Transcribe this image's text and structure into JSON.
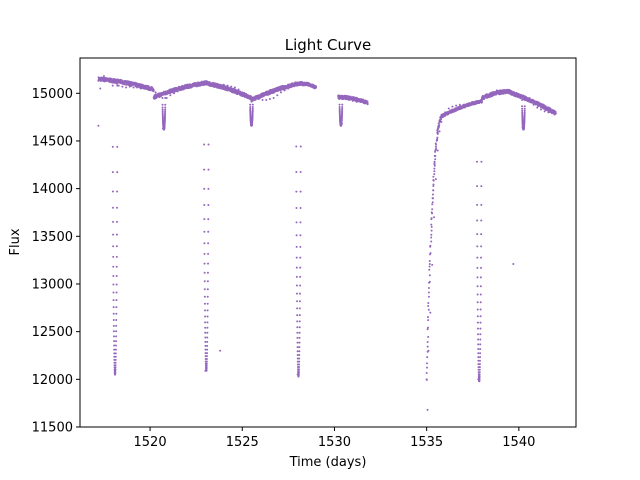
{
  "chart_data": {
    "type": "scatter",
    "title": "Light Curve",
    "xlabel": "Time (days)",
    "ylabel": "Flux",
    "xlim": [
      1516.2,
      1543.1
    ],
    "ylim": [
      11500,
      15370
    ],
    "xticks": [
      1520,
      1525,
      1530,
      1535,
      1540
    ],
    "yticks": [
      11500,
      12000,
      12500,
      13000,
      13500,
      14000,
      14500,
      15000
    ],
    "grid": false,
    "legend": "none",
    "marker_color": "#9467bd",
    "series": [
      {
        "points": [
          [
            1517.2,
            14660
          ],
          [
            1517.3,
            15050
          ],
          [
            1517.4,
            15140
          ],
          [
            1517.5,
            15180
          ],
          [
            1517.6,
            15160
          ],
          [
            1517.7,
            15140
          ],
          [
            1517.8,
            15150
          ],
          [
            1517.9,
            15130
          ],
          [
            1518.0,
            15120
          ],
          [
            1518.1,
            12050
          ],
          [
            1518.2,
            15100
          ],
          [
            1518.3,
            15080
          ],
          [
            1518.5,
            15070
          ],
          [
            1518.7,
            15060
          ],
          [
            1518.9,
            15070
          ],
          [
            1519.1,
            15060
          ],
          [
            1519.3,
            15060
          ],
          [
            1519.5,
            15050
          ],
          [
            1519.7,
            15060
          ],
          [
            1519.9,
            15050
          ],
          [
            1520.1,
            15040
          ],
          [
            1520.3,
            15010
          ],
          [
            1520.5,
            14960
          ],
          [
            1520.7,
            14630
          ],
          [
            1520.9,
            14950
          ],
          [
            1521.1,
            14980
          ],
          [
            1521.3,
            15000
          ],
          [
            1521.5,
            15020
          ],
          [
            1521.7,
            15040
          ],
          [
            1521.9,
            15060
          ],
          [
            1522.1,
            15080
          ],
          [
            1522.3,
            15090
          ],
          [
            1522.5,
            15100
          ],
          [
            1522.7,
            15110
          ],
          [
            1522.9,
            15110
          ],
          [
            1523.0,
            12090
          ],
          [
            1523.2,
            15110
          ],
          [
            1523.4,
            15110
          ],
          [
            1523.6,
            15100
          ],
          [
            1523.8,
            15090
          ],
          [
            1524.0,
            15090
          ],
          [
            1524.2,
            15080
          ],
          [
            1524.4,
            15070
          ],
          [
            1524.6,
            15060
          ],
          [
            1524.8,
            15040
          ],
          [
            1525.0,
            15010
          ],
          [
            1525.2,
            14990
          ],
          [
            1525.4,
            14960
          ],
          [
            1525.5,
            14680
          ],
          [
            1525.7,
            14950
          ],
          [
            1525.9,
            14940
          ],
          [
            1526.1,
            14930
          ],
          [
            1526.3,
            14930
          ],
          [
            1526.5,
            14940
          ],
          [
            1526.7,
            14950
          ],
          [
            1526.9,
            14980
          ],
          [
            1527.1,
            15010
          ],
          [
            1527.3,
            15030
          ],
          [
            1527.5,
            15050
          ],
          [
            1527.7,
            15080
          ],
          [
            1527.9,
            15100
          ],
          [
            1528.0,
            12050
          ],
          [
            1528.2,
            15100
          ],
          [
            1528.4,
            15090
          ],
          [
            1528.6,
            15080
          ],
          [
            1528.8,
            15070
          ],
          [
            1529.0,
            15060
          ],
          [
            1530.3,
            14950
          ],
          [
            1530.4,
            14680
          ],
          [
            1530.6,
            14940
          ],
          [
            1530.8,
            14930
          ],
          [
            1531.0,
            14920
          ],
          [
            1531.2,
            14910
          ],
          [
            1531.4,
            14910
          ],
          [
            1531.6,
            14900
          ],
          [
            1531.8,
            14890
          ],
          [
            1535.0,
            12000
          ],
          [
            1535.05,
            11680
          ],
          [
            1535.1,
            12300
          ],
          [
            1535.2,
            12700
          ],
          [
            1535.3,
            13200
          ],
          [
            1535.4,
            13700
          ],
          [
            1535.5,
            14100
          ],
          [
            1535.6,
            14400
          ],
          [
            1535.7,
            14600
          ],
          [
            1535.8,
            14700
          ],
          [
            1535.9,
            14760
          ],
          [
            1536.0,
            14800
          ],
          [
            1536.2,
            14840
          ],
          [
            1536.4,
            14860
          ],
          [
            1536.6,
            14870
          ],
          [
            1536.8,
            14880
          ],
          [
            1537.0,
            14880
          ],
          [
            1537.2,
            14870
          ],
          [
            1537.4,
            14880
          ],
          [
            1537.6,
            14900
          ],
          [
            1537.8,
            12000
          ],
          [
            1538.0,
            14930
          ],
          [
            1538.2,
            14960
          ],
          [
            1538.4,
            14990
          ],
          [
            1538.6,
            15010
          ],
          [
            1538.8,
            15030
          ],
          [
            1539.0,
            15030
          ],
          [
            1539.2,
            15020
          ],
          [
            1539.4,
            15010
          ],
          [
            1539.6,
            15000
          ],
          [
            1539.7,
            13210
          ],
          [
            1539.8,
            14990
          ],
          [
            1540.0,
            14970
          ],
          [
            1540.2,
            14640
          ],
          [
            1540.4,
            14950
          ],
          [
            1540.6,
            14920
          ],
          [
            1540.8,
            14880
          ],
          [
            1541.0,
            14850
          ],
          [
            1541.2,
            14830
          ],
          [
            1541.4,
            14810
          ],
          [
            1541.6,
            14800
          ],
          [
            1541.8,
            14790
          ],
          [
            1542.0,
            14790
          ],
          [
            1523.8,
            12300
          ]
        ]
      }
    ],
    "dense_segments": [
      {
        "x": [
          1517.2,
          1520.2
        ],
        "y": [
          15150,
          15040
        ],
        "spread": 40
      },
      {
        "x": [
          1520.2,
          1523.0
        ],
        "y": [
          14960,
          15110
        ],
        "spread": 40
      },
      {
        "x": [
          1523.0,
          1525.5
        ],
        "y": [
          15110,
          14950
        ],
        "spread": 40
      },
      {
        "x": [
          1525.5,
          1528.0
        ],
        "y": [
          14930,
          15100
        ],
        "spread": 40
      },
      {
        "x": [
          1528.0,
          1529.0
        ],
        "y": [
          15100,
          15060
        ],
        "spread": 35
      },
      {
        "x": [
          1530.2,
          1531.8
        ],
        "y": [
          14960,
          14900
        ],
        "spread": 35
      },
      {
        "x": [
          1535.8,
          1538.0
        ],
        "y": [
          14760,
          14920
        ],
        "spread": 30
      },
      {
        "x": [
          1538.0,
          1539.5
        ],
        "y": [
          14950,
          15020
        ],
        "spread": 40
      },
      {
        "x": [
          1539.5,
          1542.0
        ],
        "y": [
          15010,
          14790
        ],
        "spread": 40
      }
    ],
    "eclipses": [
      {
        "x": 1518.1,
        "top": 15080,
        "bottom": 12050,
        "width": 0.25
      },
      {
        "x": 1523.05,
        "top": 15100,
        "bottom": 12090,
        "width": 0.25
      },
      {
        "x": 1528.05,
        "top": 15090,
        "bottom": 12030,
        "width": 0.25
      },
      {
        "x": 1537.85,
        "top": 14900,
        "bottom": 11980,
        "width": 0.25
      },
      {
        "x": 1520.75,
        "top": 14950,
        "bottom": 14620,
        "width": 0.15
      },
      {
        "x": 1525.5,
        "top": 14940,
        "bottom": 14660,
        "width": 0.15
      },
      {
        "x": 1530.35,
        "top": 14940,
        "bottom": 14660,
        "width": 0.15
      },
      {
        "x": 1540.25,
        "top": 14930,
        "bottom": 14620,
        "width": 0.15
      }
    ]
  }
}
